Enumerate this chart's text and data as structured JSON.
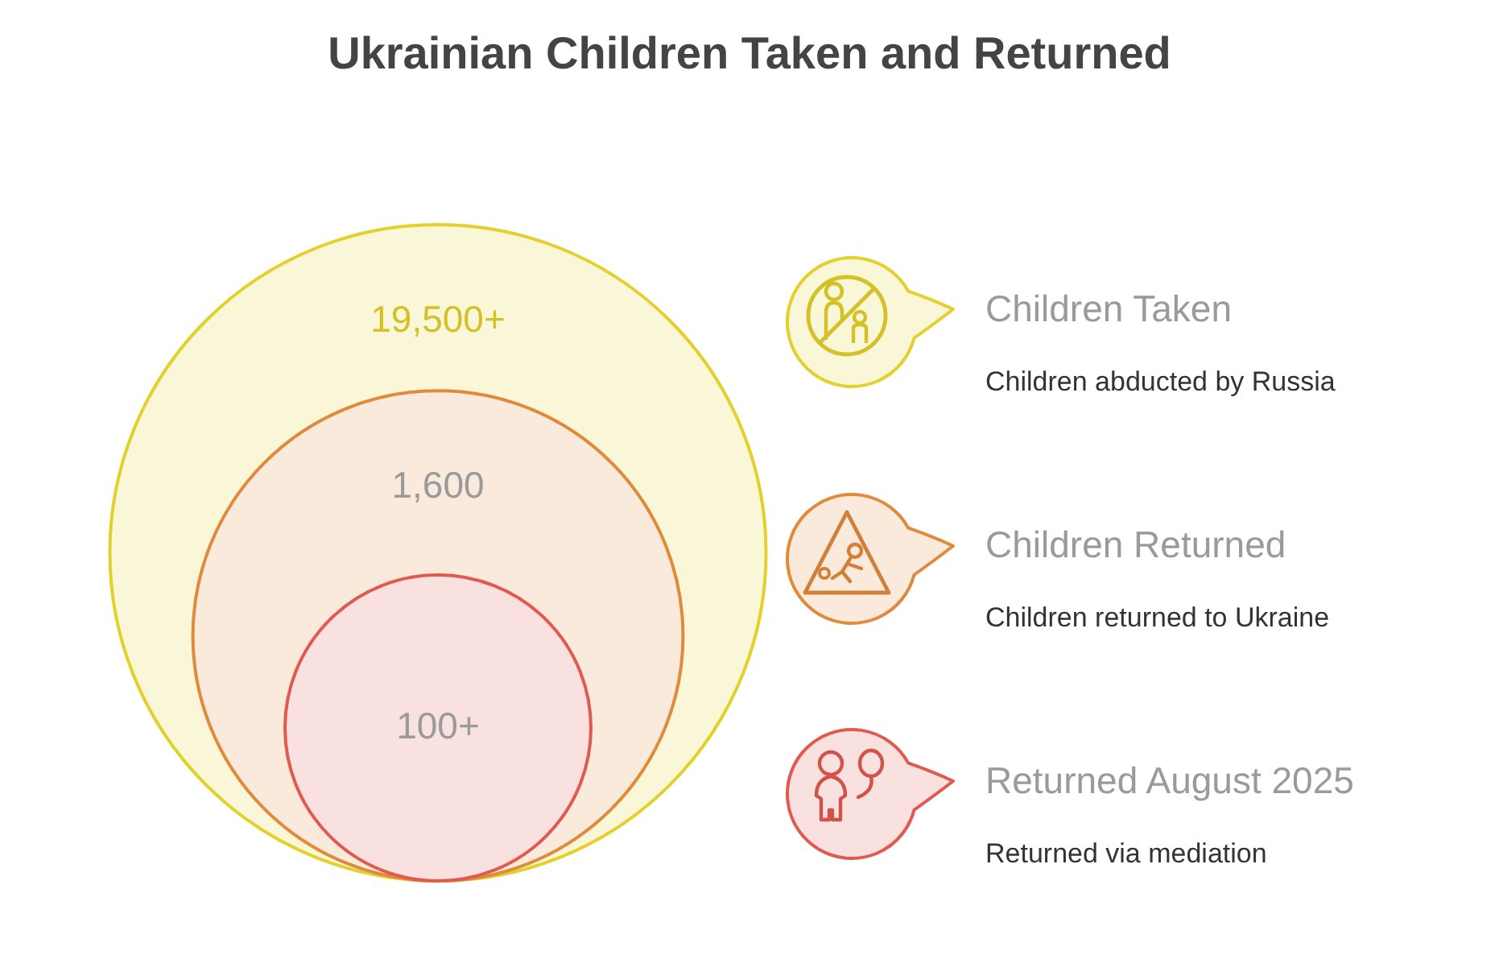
{
  "chart_data": {
    "type": "other",
    "title": "Ukrainian Children Taken and Returned",
    "categories": [
      "Children Taken",
      "Children Returned",
      "Returned August 2025"
    ],
    "values": [
      19500,
      1600,
      100
    ],
    "value_labels": [
      "19,500+",
      "1,600",
      "100+"
    ],
    "colors": [
      "#e3d02a",
      "#e08a3c",
      "#e05a50"
    ],
    "annotations": [
      "Children abducted by Russia",
      "Children returned to Ukraine",
      "Returned via mediation"
    ]
  }
}
